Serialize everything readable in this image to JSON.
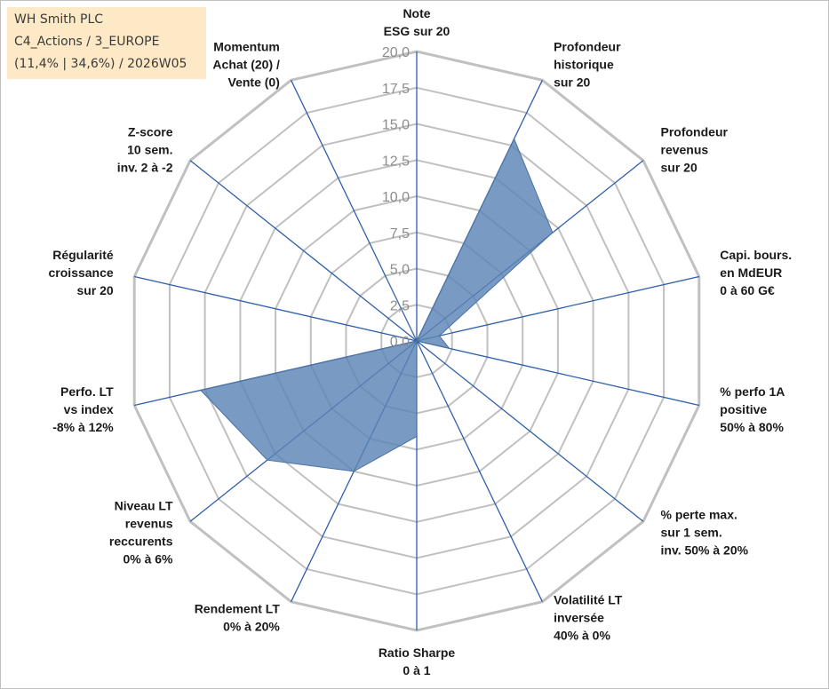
{
  "info": {
    "company": "WH Smith PLC",
    "category": "C4_Actions / 3_EUROPE",
    "stats": "(11,4% | 34,6%) / 2026W05"
  },
  "colors": {
    "fill": "#5b84b4",
    "axis": "#2e5fa8",
    "grid": "#c0c0c0",
    "text": "#1a1a1a"
  },
  "chart_data": {
    "type": "radar",
    "title": "",
    "rmin": 0,
    "rmax": 20,
    "tick_labels": [
      "0,0",
      "2,5",
      "5,0",
      "7,5",
      "10,0",
      "12,5",
      "15,0",
      "17,5",
      "20,0"
    ],
    "axes": [
      {
        "label": [
          "Note",
          "ESG sur 20"
        ],
        "value": 0
      },
      {
        "label": [
          "Profondeur",
          "historique",
          "sur 20"
        ],
        "value": 15.5
      },
      {
        "label": [
          "Profondeur",
          "revenus",
          "sur 20"
        ],
        "value": 12.0
      },
      {
        "label": [
          "Capi. bours.",
          "en MdEUR",
          "0 à 60 G€"
        ],
        "value": 1.6
      },
      {
        "label": [
          "% perfo 1A",
          "positive",
          "50% à 80%"
        ],
        "value": 2.3
      },
      {
        "label": [
          "% perte max.",
          "sur 1 sem.",
          "inv. 50% à 20%"
        ],
        "value": 0
      },
      {
        "label": [
          "Volatilité LT",
          "inversée",
          "40% à 0%"
        ],
        "value": 0
      },
      {
        "label": [
          "Ratio Sharpe",
          "0 à 1"
        ],
        "value": 6.6
      },
      {
        "label": [
          "Rendement LT",
          "0% à 20%"
        ],
        "value": 10.0
      },
      {
        "label": [
          "Niveau LT",
          "revenus",
          "reccurents",
          "0% à 6%"
        ],
        "value": 13.2
      },
      {
        "label": [
          "Perfo. LT",
          "vs index",
          "-8% à 12%"
        ],
        "value": 15.3
      },
      {
        "label": [
          "Régularité",
          "croissance",
          "sur 20"
        ],
        "value": 0
      },
      {
        "label": [
          "Z-score",
          "10 sem.",
          "inv. 2 à -2"
        ],
        "value": 0
      },
      {
        "label": [
          "Momentum",
          "Achat (20) /",
          "Vente (0)"
        ],
        "value": 4.9
      }
    ]
  }
}
